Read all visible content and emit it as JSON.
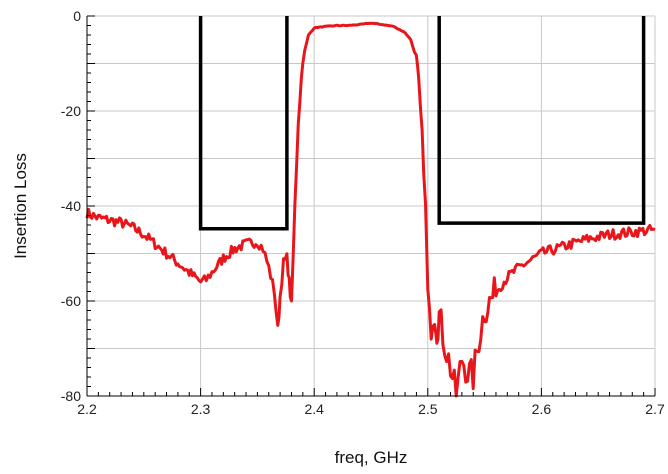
{
  "chart_data": {
    "type": "line",
    "title": "",
    "xlabel": "freq,  GHz",
    "ylabel": "Insertion Loss",
    "xlim": [
      2.2,
      2.7
    ],
    "ylim": [
      -80,
      0
    ],
    "grid": true,
    "x_ticks": [
      "2.2",
      "2.3",
      "2.4",
      "2.5",
      "2.6",
      "2.7"
    ],
    "y_ticks": [
      "0",
      "-20",
      "-40",
      "-60",
      "-80"
    ],
    "colors": {
      "measured": "#e8161b",
      "mask": "#000000",
      "grid": "#c8c8c8"
    },
    "series": [
      {
        "style": "noisy-red",
        "x": [
          2.2,
          2.21,
          2.22,
          2.23,
          2.24,
          2.25,
          2.26,
          2.27,
          2.28,
          2.29,
          2.3,
          2.305,
          2.31,
          2.32,
          2.33,
          2.34,
          2.35,
          2.355,
          2.36,
          2.365,
          2.368,
          2.37,
          2.373,
          2.376,
          2.378,
          2.38,
          2.383,
          2.386,
          2.39,
          2.395,
          2.4,
          2.41,
          2.42,
          2.43,
          2.44,
          2.45,
          2.46,
          2.47,
          2.48,
          2.485,
          2.49,
          2.492,
          2.495,
          2.498,
          2.5,
          2.503,
          2.506,
          2.508,
          2.51,
          2.515,
          2.52,
          2.525,
          2.53,
          2.535,
          2.54,
          2.545,
          2.55,
          2.56,
          2.57,
          2.58,
          2.6,
          2.62,
          2.64,
          2.66,
          2.68,
          2.7
        ],
        "y": [
          -41.5,
          -42.5,
          -43,
          -43.5,
          -44.5,
          -46,
          -48,
          -50,
          -52,
          -54,
          -56,
          -55.5,
          -54,
          -51,
          -49,
          -48,
          -47.5,
          -49,
          -53,
          -58,
          -66,
          -59,
          -52,
          -51,
          -56,
          -61,
          -40,
          -22,
          -9,
          -4,
          -2.5,
          -2.2,
          -2,
          -2,
          -1.8,
          -1.5,
          -1.8,
          -2.2,
          -3.5,
          -5,
          -9,
          -14,
          -25,
          -40,
          -58,
          -67,
          -62,
          -66,
          -63,
          -69,
          -74,
          -80,
          -72,
          -75,
          -76,
          -68,
          -62,
          -58,
          -55,
          -53,
          -50,
          -48.5,
          -47,
          -46,
          -45.5,
          -45
        ]
      },
      {
        "style": "mask-black",
        "x": [
          2.3,
          2.3,
          2.376,
          2.376
        ],
        "y": [
          0,
          -44.8,
          -44.8,
          0
        ]
      },
      {
        "style": "mask-black",
        "x": [
          2.51,
          2.51,
          2.69,
          2.69
        ],
        "y": [
          0,
          -43.6,
          -43.6,
          0
        ]
      }
    ]
  }
}
